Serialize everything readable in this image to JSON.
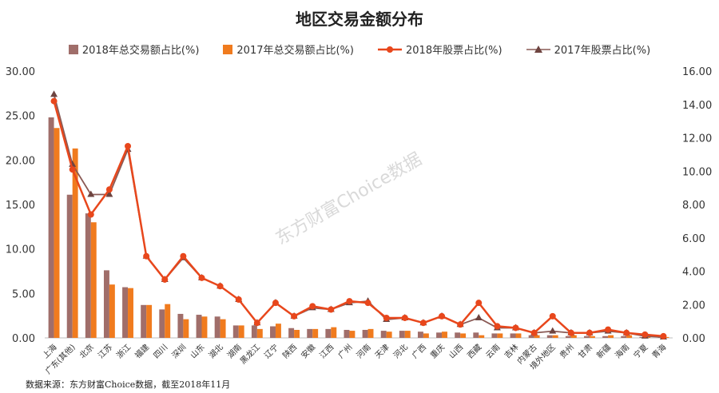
{
  "chart_data": {
    "type": "bar",
    "title": "地区交易金额分布",
    "source": "数据来源：东方财富Choice数据，截至2018年11月",
    "watermark": "东方财富Choice数据",
    "categories": [
      "上海",
      "广东(其他)",
      "北京",
      "江苏",
      "浙江",
      "福建",
      "四川",
      "深圳",
      "山东",
      "湖北",
      "湖南",
      "黑龙江",
      "辽宁",
      "陕西",
      "安徽",
      "江西",
      "广州",
      "河南",
      "天津",
      "河北",
      "广西",
      "重庆",
      "山西",
      "西藏",
      "云南",
      "吉林",
      "内蒙古",
      "境外地区",
      "贵州",
      "甘肃",
      "新疆",
      "海南",
      "宁夏",
      "青海"
    ],
    "left_axis": {
      "ylim": [
        0,
        30
      ],
      "ticks": [
        "0.00",
        "5.00",
        "10.00",
        "15.00",
        "20.00",
        "25.00",
        "30.00"
      ]
    },
    "right_axis": {
      "ylim": [
        0,
        16
      ],
      "ticks": [
        "0.00",
        "2.00",
        "4.00",
        "6.00",
        "8.00",
        "10.00",
        "12.00",
        "14.00",
        "16.00"
      ]
    },
    "series": [
      {
        "name": "2018年总交易额占比(%)",
        "type": "bar",
        "axis": "left",
        "color": "#a06e6a",
        "values": [
          24.8,
          16.1,
          14.0,
          7.6,
          5.7,
          3.7,
          3.2,
          2.7,
          2.6,
          2.4,
          1.4,
          1.4,
          1.3,
          1.1,
          1.0,
          1.0,
          0.9,
          0.9,
          0.8,
          0.8,
          0.7,
          0.6,
          0.6,
          0.6,
          0.5,
          0.5,
          0.3,
          0.3,
          0.2,
          0.2,
          0.2,
          0.2,
          0.1,
          0.1
        ]
      },
      {
        "name": "2017年总交易额占比(%)",
        "type": "bar",
        "axis": "left",
        "color": "#f07b1e",
        "values": [
          23.6,
          21.3,
          13.0,
          6.0,
          5.6,
          3.7,
          3.8,
          2.1,
          2.4,
          2.1,
          1.4,
          1.0,
          1.6,
          0.9,
          1.0,
          1.2,
          0.8,
          1.0,
          0.7,
          0.8,
          0.5,
          0.7,
          0.5,
          0.3,
          0.5,
          0.5,
          0.3,
          0.3,
          0.3,
          0.2,
          0.3,
          0.3,
          0.1,
          0.1
        ]
      },
      {
        "name": "2018年股票占比(%)",
        "type": "line",
        "axis": "right",
        "color": "#e8471c",
        "marker": "circle",
        "values": [
          14.2,
          10.1,
          7.4,
          8.9,
          11.5,
          4.9,
          3.5,
          4.9,
          3.6,
          3.1,
          2.3,
          0.9,
          2.1,
          1.3,
          1.9,
          1.7,
          2.2,
          2.1,
          1.2,
          1.2,
          0.9,
          1.3,
          0.8,
          2.1,
          0.7,
          0.6,
          0.3,
          1.3,
          0.3,
          0.3,
          0.5,
          0.3,
          0.2,
          0.1
        ]
      },
      {
        "name": "2017年股票占比(%)",
        "type": "line",
        "axis": "right",
        "color": "#8a5a55",
        "marker": "triangle",
        "values": [
          14.6,
          10.4,
          8.6,
          8.6,
          11.3,
          4.9,
          3.5,
          4.8,
          3.6,
          3.1,
          2.3,
          0.9,
          2.1,
          1.3,
          1.8,
          1.7,
          2.1,
          2.2,
          1.1,
          1.2,
          0.9,
          1.3,
          0.8,
          1.2,
          0.6,
          0.6,
          0.3,
          0.4,
          0.3,
          0.3,
          0.4,
          0.3,
          0.1,
          0.05
        ]
      }
    ],
    "legend": "top",
    "grid": false
  }
}
